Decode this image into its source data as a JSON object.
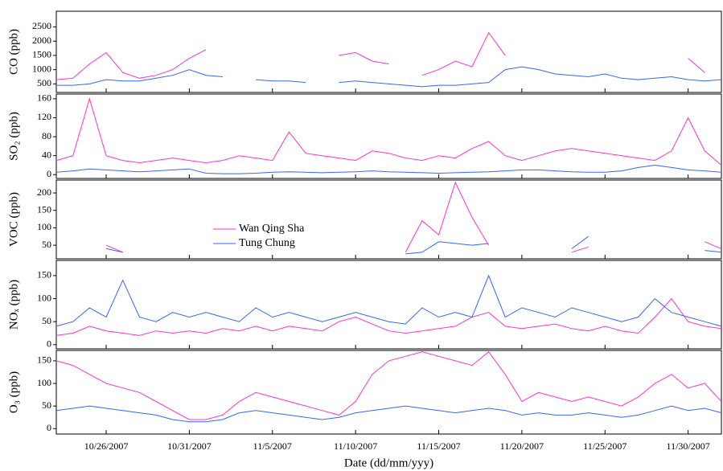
{
  "chart_data": [
    {
      "type": "line",
      "ylabel": "CO (ppb)",
      "xlim": [
        "10/23/2007",
        "12/2/2007"
      ],
      "ylim": [
        200,
        3050
      ],
      "yticks": [
        500,
        1000,
        1500,
        2000,
        2500
      ],
      "x": [
        "10/23/2007",
        "10/24/2007",
        "10/25/2007",
        "10/26/2007",
        "10/27/2007",
        "10/28/2007",
        "10/29/2007",
        "10/30/2007",
        "10/31/2007",
        "11/1/2007",
        "11/2/2007",
        "11/3/2007",
        "11/4/2007",
        "11/5/2007",
        "11/6/2007",
        "11/7/2007",
        "11/8/2007",
        "11/9/2007",
        "11/10/2007",
        "11/11/2007",
        "11/12/2007",
        "11/13/2007",
        "11/14/2007",
        "11/15/2007",
        "11/16/2007",
        "11/17/2007",
        "11/18/2007",
        "11/19/2007",
        "11/20/2007",
        "11/21/2007",
        "11/22/2007",
        "11/23/2007",
        "11/24/2007",
        "11/25/2007",
        "11/26/2007",
        "11/27/2007",
        "11/28/2007",
        "11/29/2007",
        "11/30/2007",
        "12/1/2007",
        "12/2/2007"
      ],
      "series": [
        {
          "color": "#ff33cc",
          "values": [
            650,
            700,
            1200,
            1600,
            900,
            700,
            800,
            1000,
            1400,
            1700,
            null,
            null,
            null,
            null,
            null,
            null,
            null,
            1500,
            1600,
            1300,
            1200,
            null,
            800,
            1000,
            1300,
            1100,
            2300,
            1500,
            null,
            null,
            null,
            null,
            null,
            null,
            null,
            null,
            null,
            null,
            1400,
            900,
            null
          ]
        },
        {
          "color": "#3366ff",
          "values": [
            450,
            450,
            500,
            650,
            600,
            600,
            700,
            800,
            1000,
            800,
            750,
            null,
            650,
            600,
            600,
            550,
            null,
            550,
            600,
            550,
            500,
            450,
            400,
            450,
            450,
            500,
            550,
            1000,
            1100,
            1000,
            850,
            800,
            750,
            850,
            700,
            650,
            700,
            750,
            650,
            600,
            650
          ]
        }
      ]
    },
    {
      "type": "line",
      "ylabel": "SO₂ (ppb)",
      "xlim": [
        "10/23/2007",
        "12/2/2007"
      ],
      "ylim": [
        -8,
        170
      ],
      "yticks": [
        0,
        40,
        80,
        120,
        160
      ],
      "x": [
        "10/23/2007",
        "10/24/2007",
        "10/25/2007",
        "10/26/2007",
        "10/27/2007",
        "10/28/2007",
        "10/29/2007",
        "10/30/2007",
        "10/31/2007",
        "11/1/2007",
        "11/2/2007",
        "11/3/2007",
        "11/4/2007",
        "11/5/2007",
        "11/6/2007",
        "11/7/2007",
        "11/8/2007",
        "11/9/2007",
        "11/10/2007",
        "11/11/2007",
        "11/12/2007",
        "11/13/2007",
        "11/14/2007",
        "11/15/2007",
        "11/16/2007",
        "11/17/2007",
        "11/18/2007",
        "11/19/2007",
        "11/20/2007",
        "11/21/2007",
        "11/22/2007",
        "11/23/2007",
        "11/24/2007",
        "11/25/2007",
        "11/26/2007",
        "11/27/2007",
        "11/28/2007",
        "11/29/2007",
        "11/30/2007",
        "12/1/2007",
        "12/2/2007"
      ],
      "series": [
        {
          "color": "#ff33cc",
          "values": [
            30,
            40,
            160,
            40,
            30,
            25,
            30,
            35,
            30,
            25,
            30,
            40,
            35,
            30,
            90,
            45,
            40,
            35,
            30,
            50,
            45,
            35,
            30,
            40,
            35,
            55,
            70,
            40,
            30,
            40,
            50,
            55,
            50,
            45,
            40,
            35,
            30,
            50,
            120,
            50,
            20
          ]
        },
        {
          "color": "#3366ff",
          "values": [
            5,
            8,
            12,
            10,
            8,
            6,
            8,
            10,
            12,
            3,
            2,
            2,
            3,
            5,
            6,
            5,
            4,
            5,
            6,
            8,
            6,
            5,
            4,
            3,
            4,
            5,
            6,
            8,
            10,
            10,
            8,
            6,
            5,
            5,
            8,
            15,
            20,
            15,
            10,
            8,
            5
          ]
        }
      ]
    },
    {
      "type": "line",
      "ylabel": "VOC (ppb)",
      "xlim": [
        "10/23/2007",
        "12/2/2007"
      ],
      "ylim": [
        11,
        237
      ],
      "yticks": [
        50,
        100,
        150,
        200
      ],
      "x": [
        "10/23/2007",
        "10/24/2007",
        "10/25/2007",
        "10/26/2007",
        "10/27/2007",
        "10/28/2007",
        "10/29/2007",
        "10/30/2007",
        "10/31/2007",
        "11/1/2007",
        "11/2/2007",
        "11/3/2007",
        "11/4/2007",
        "11/5/2007",
        "11/6/2007",
        "11/7/2007",
        "11/8/2007",
        "11/9/2007",
        "11/10/2007",
        "11/11/2007",
        "11/12/2007",
        "11/13/2007",
        "11/14/2007",
        "11/15/2007",
        "11/16/2007",
        "11/17/2007",
        "11/18/2007",
        "11/19/2007",
        "11/20/2007",
        "11/21/2007",
        "11/22/2007",
        "11/23/2007",
        "11/24/2007",
        "11/25/2007",
        "11/26/2007",
        "11/27/2007",
        "11/28/2007",
        "11/29/2007",
        "11/30/2007",
        "12/1/2007",
        "12/2/2007"
      ],
      "series": [
        {
          "name": "Wan Qing Sha",
          "color": "#ff33cc",
          "values": [
            null,
            null,
            null,
            50,
            30,
            null,
            null,
            null,
            null,
            null,
            null,
            null,
            null,
            null,
            null,
            null,
            null,
            null,
            null,
            null,
            null,
            30,
            120,
            80,
            230,
            130,
            50,
            null,
            null,
            null,
            null,
            30,
            45,
            null,
            null,
            null,
            null,
            null,
            null,
            60,
            40
          ]
        },
        {
          "name": "Tung Chung",
          "color": "#3366ff",
          "values": [
            null,
            null,
            null,
            40,
            30,
            null,
            null,
            null,
            null,
            null,
            null,
            null,
            null,
            null,
            null,
            null,
            null,
            null,
            null,
            null,
            null,
            25,
            30,
            60,
            55,
            50,
            55,
            null,
            null,
            null,
            null,
            40,
            75,
            null,
            null,
            null,
            null,
            null,
            null,
            35,
            30
          ]
        }
      ]
    },
    {
      "type": "line",
      "ylabel": "NOₓ (ppb)",
      "xlim": [
        "10/23/2007",
        "12/2/2007"
      ],
      "ylim": [
        -9,
        183
      ],
      "yticks": [
        0,
        50,
        100,
        150
      ],
      "x": [
        "10/23/2007",
        "10/24/2007",
        "10/25/2007",
        "10/26/2007",
        "10/27/2007",
        "10/28/2007",
        "10/29/2007",
        "10/30/2007",
        "10/31/2007",
        "11/1/2007",
        "11/2/2007",
        "11/3/2007",
        "11/4/2007",
        "11/5/2007",
        "11/6/2007",
        "11/7/2007",
        "11/8/2007",
        "11/9/2007",
        "11/10/2007",
        "11/11/2007",
        "11/12/2007",
        "11/13/2007",
        "11/14/2007",
        "11/15/2007",
        "11/16/2007",
        "11/17/2007",
        "11/18/2007",
        "11/19/2007",
        "11/20/2007",
        "11/21/2007",
        "11/22/2007",
        "11/23/2007",
        "11/24/2007",
        "11/25/2007",
        "11/26/2007",
        "11/27/2007",
        "11/28/2007",
        "11/29/2007",
        "11/30/2007",
        "12/1/2007",
        "12/2/2007"
      ],
      "series": [
        {
          "color": "#ff33cc",
          "values": [
            20,
            25,
            40,
            30,
            25,
            20,
            30,
            25,
            30,
            25,
            35,
            30,
            40,
            30,
            40,
            35,
            30,
            50,
            60,
            45,
            30,
            25,
            30,
            35,
            40,
            60,
            70,
            40,
            35,
            40,
            45,
            35,
            30,
            40,
            30,
            25,
            60,
            100,
            50,
            40,
            35
          ]
        },
        {
          "color": "#3366ff",
          "values": [
            40,
            50,
            80,
            60,
            140,
            60,
            50,
            70,
            60,
            70,
            60,
            50,
            80,
            60,
            70,
            60,
            50,
            60,
            70,
            60,
            50,
            45,
            80,
            60,
            70,
            60,
            150,
            60,
            80,
            70,
            60,
            80,
            70,
            60,
            50,
            60,
            100,
            70,
            60,
            50,
            40
          ]
        }
      ]
    },
    {
      "type": "line",
      "ylabel": "O₃ (ppb)",
      "xlabel": "Date (dd/mm/yyy)",
      "xlim": [
        "10/23/2007",
        "12/2/2007"
      ],
      "ylim": [
        -12,
        173
      ],
      "yticks": [
        0,
        50,
        100,
        150
      ],
      "xticks": [
        "10/26/2007",
        "10/31/2007",
        "11/5/2007",
        "11/10/2007",
        "11/15/2007",
        "11/20/2007",
        "11/25/2007",
        "11/30/2007"
      ],
      "x": [
        "10/23/2007",
        "10/24/2007",
        "10/25/2007",
        "10/26/2007",
        "10/27/2007",
        "10/28/2007",
        "10/29/2007",
        "10/30/2007",
        "10/31/2007",
        "11/1/2007",
        "11/2/2007",
        "11/3/2007",
        "11/4/2007",
        "11/5/2007",
        "11/6/2007",
        "11/7/2007",
        "11/8/2007",
        "11/9/2007",
        "11/10/2007",
        "11/11/2007",
        "11/12/2007",
        "11/13/2007",
        "11/14/2007",
        "11/15/2007",
        "11/16/2007",
        "11/17/2007",
        "11/18/2007",
        "11/19/2007",
        "11/20/2007",
        "11/21/2007",
        "11/22/2007",
        "11/23/2007",
        "11/24/2007",
        "11/25/2007",
        "11/26/2007",
        "11/27/2007",
        "11/28/2007",
        "11/29/2007",
        "11/30/2007",
        "12/1/2007",
        "12/2/2007"
      ],
      "series": [
        {
          "color": "#ff33cc",
          "values": [
            150,
            140,
            120,
            100,
            90,
            80,
            60,
            40,
            20,
            20,
            30,
            60,
            80,
            70,
            60,
            50,
            40,
            30,
            60,
            120,
            150,
            160,
            170,
            160,
            150,
            140,
            170,
            120,
            60,
            80,
            70,
            60,
            70,
            60,
            50,
            70,
            100,
            120,
            90,
            100,
            60
          ]
        },
        {
          "color": "#3366ff",
          "values": [
            40,
            45,
            50,
            45,
            40,
            35,
            30,
            20,
            15,
            15,
            20,
            35,
            40,
            35,
            30,
            25,
            20,
            25,
            35,
            40,
            45,
            50,
            45,
            40,
            35,
            40,
            45,
            40,
            30,
            35,
            30,
            30,
            35,
            30,
            25,
            30,
            40,
            50,
            40,
            45,
            35
          ]
        }
      ]
    }
  ]
}
